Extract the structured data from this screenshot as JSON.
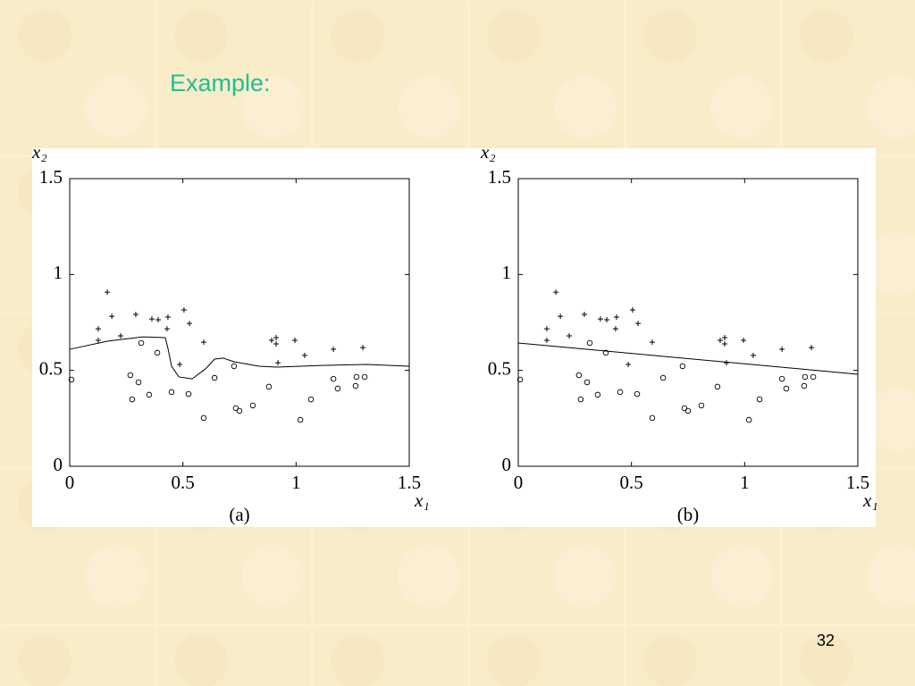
{
  "title": "Example:",
  "page_number": "32",
  "chart_data": [
    {
      "type": "scatter",
      "caption": "(a)",
      "xlabel": "x₁",
      "ylabel": "x₂",
      "xlim": [
        0,
        1.5
      ],
      "ylim": [
        0,
        1.5
      ],
      "xticks": [
        0,
        0.5,
        1,
        1.5
      ],
      "yticks": [
        0,
        0.5,
        1,
        1.5
      ],
      "grid": false,
      "series": [
        {
          "style": "plus",
          "color": "#000000",
          "x": [
            0.126,
            0.126,
            0.166,
            0.186,
            0.225,
            0.292,
            0.363,
            0.391,
            0.434,
            0.43,
            0.505,
            0.529,
            0.486,
            0.592,
            0.892,
            0.912,
            0.912,
            0.92,
            0.995,
            1.038,
            1.165,
            1.295
          ],
          "y": [
            0.717,
            0.657,
            0.908,
            0.782,
            0.68,
            0.792,
            0.768,
            0.764,
            0.778,
            0.717,
            0.815,
            0.745,
            0.531,
            0.647,
            0.657,
            0.671,
            0.638,
            0.54,
            0.657,
            0.578,
            0.61,
            0.619
          ]
        },
        {
          "style": "circle",
          "color": "#000000",
          "x": [
            0.008,
            0.268,
            0.276,
            0.304,
            0.316,
            0.351,
            0.387,
            0.45,
            0.525,
            0.592,
            0.64,
            0.726,
            0.734,
            0.75,
            0.809,
            0.88,
            1.019,
            1.066,
            1.165,
            1.184,
            1.263,
            1.267,
            1.303
          ],
          "y": [
            0.452,
            0.475,
            0.349,
            0.438,
            0.643,
            0.373,
            0.592,
            0.387,
            0.377,
            0.252,
            0.461,
            0.522,
            0.303,
            0.289,
            0.317,
            0.415,
            0.242,
            0.349,
            0.456,
            0.405,
            0.419,
            0.466,
            0.466
          ]
        },
        {
          "style": "line",
          "color": "#000000",
          "x": [
            0,
            0.166,
            0.324,
            0.422,
            0.434,
            0.45,
            0.482,
            0.541,
            0.6,
            0.64,
            0.679,
            0.726,
            0.837,
            0.916,
            1.113,
            1.311,
            1.5
          ],
          "y": [
            0.61,
            0.652,
            0.675,
            0.671,
            0.615,
            0.522,
            0.466,
            0.456,
            0.508,
            0.559,
            0.564,
            0.545,
            0.522,
            0.517,
            0.526,
            0.531,
            0.522
          ]
        }
      ]
    },
    {
      "type": "scatter",
      "caption": "(b)",
      "xlabel": "x₁",
      "ylabel": "x₂",
      "xlim": [
        0,
        1.5
      ],
      "ylim": [
        0,
        1.5
      ],
      "xticks": [
        0,
        0.5,
        1,
        1.5
      ],
      "yticks": [
        0,
        0.5,
        1,
        1.5
      ],
      "grid": false,
      "series": [
        {
          "style": "plus",
          "color": "#000000",
          "x": [
            0.126,
            0.126,
            0.166,
            0.186,
            0.225,
            0.292,
            0.363,
            0.391,
            0.434,
            0.43,
            0.505,
            0.529,
            0.486,
            0.592,
            0.892,
            0.912,
            0.912,
            0.92,
            0.995,
            1.038,
            1.165,
            1.295
          ],
          "y": [
            0.717,
            0.657,
            0.908,
            0.782,
            0.68,
            0.792,
            0.768,
            0.764,
            0.778,
            0.717,
            0.815,
            0.745,
            0.531,
            0.647,
            0.657,
            0.671,
            0.638,
            0.54,
            0.657,
            0.578,
            0.61,
            0.619
          ]
        },
        {
          "style": "circle",
          "color": "#000000",
          "x": [
            0.008,
            0.268,
            0.276,
            0.304,
            0.316,
            0.351,
            0.387,
            0.45,
            0.525,
            0.592,
            0.64,
            0.726,
            0.734,
            0.75,
            0.809,
            0.88,
            1.019,
            1.066,
            1.165,
            1.184,
            1.263,
            1.267,
            1.303
          ],
          "y": [
            0.452,
            0.475,
            0.349,
            0.438,
            0.643,
            0.373,
            0.592,
            0.387,
            0.377,
            0.252,
            0.461,
            0.522,
            0.303,
            0.289,
            0.317,
            0.415,
            0.242,
            0.349,
            0.456,
            0.405,
            0.419,
            0.466,
            0.466
          ]
        },
        {
          "style": "line",
          "color": "#000000",
          "x": [
            0,
            1.5
          ],
          "y": [
            0.643,
            0.48
          ]
        }
      ]
    }
  ]
}
